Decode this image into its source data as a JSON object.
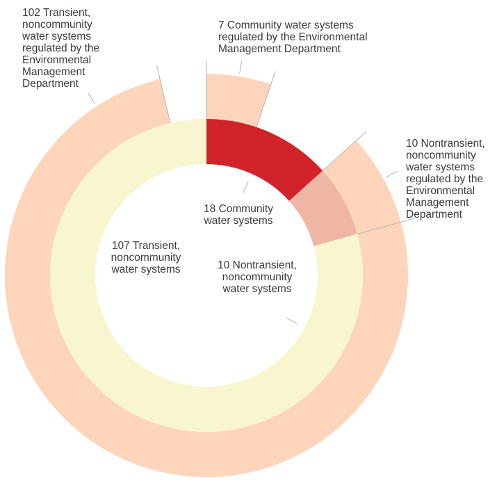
{
  "chart_data": {
    "type": "pie",
    "variant": "nested-donut",
    "start_angle": "12 o'clock",
    "direction": "clockwise",
    "inner_ring": [
      {
        "label": "18 Community\nwater systems",
        "value": 18,
        "color": "#d0232a"
      },
      {
        "label": "10 Nontransient,\nnoncommunity\nwater systems",
        "value": 10,
        "color": "#efb6a5"
      },
      {
        "label": "107 Transient,\nnoncommunity\nwater systems",
        "value": 107,
        "color": "#f8f6cf"
      }
    ],
    "outer_ring": [
      {
        "label": "7 Community water systems\nregulated by the Environmental\nManagement Department",
        "value": 7,
        "color": "#fdd5bb"
      },
      {
        "label": "",
        "value": 11,
        "color": "none"
      },
      {
        "label": "10 Nontransient,\nnoncommunity\nwater systems\nregulated by the\nEnvironmental\nManagement\nDepartment",
        "value": 10,
        "color": "#fdd5bb"
      },
      {
        "label": "102 Transient,\nnoncommunity\nwater systems\nregulated by the\nEnvironmental\nManagement\nDepartment",
        "value": 102,
        "color": "#fdd5bb"
      },
      {
        "label": "",
        "value": 5,
        "color": "none"
      }
    ]
  }
}
